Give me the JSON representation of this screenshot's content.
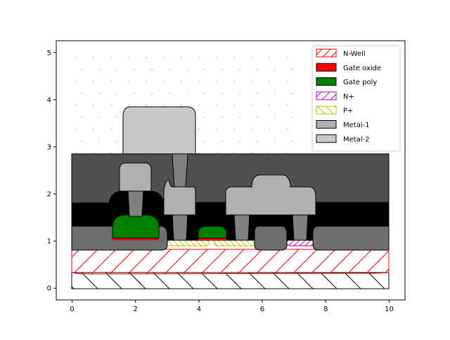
{
  "chart_data": {
    "type": "diagram",
    "xlim": [
      -0.5,
      10.5
    ],
    "ylim": [
      -0.25,
      5.25
    ],
    "x_ticks": [
      0,
      2,
      4,
      6,
      8,
      10
    ],
    "y_ticks": [
      0,
      1,
      2,
      3,
      4,
      5
    ],
    "x_tick_labels": [
      "0",
      "2",
      "4",
      "6",
      "8",
      "10"
    ],
    "y_tick_labels": [
      "0",
      "1",
      "2",
      "3",
      "4",
      "5"
    ],
    "legend_position": "top-right",
    "legend": [
      {
        "label": "N-Well",
        "face": "#ffffff",
        "edge": "#ff0000",
        "hatch": "/"
      },
      {
        "label": "Gate oxide",
        "face": "#ff0000",
        "edge": "#000000",
        "hatch": ""
      },
      {
        "label": "Gate poly",
        "face": "#008000",
        "edge": "#000000",
        "hatch": ""
      },
      {
        "label": "N+",
        "face": "#ffffff",
        "edge": "#bf00bf",
        "hatch": "/"
      },
      {
        "label": "P+",
        "face": "#ffffff",
        "edge": "#bfbf00",
        "hatch": "\\"
      },
      {
        "label": "Metal-1",
        "face": "#b0b0b0",
        "edge": "#000000",
        "hatch": ""
      },
      {
        "label": "Metal-2",
        "face": "#c8c8c8",
        "edge": "#000000",
        "hatch": ""
      }
    ],
    "layers": {
      "substrate": {
        "x": [
          0,
          10
        ],
        "y": [
          0,
          0.33
        ]
      },
      "n_well": {
        "x": [
          0,
          10
        ],
        "y": [
          0.3,
          0.85
        ]
      },
      "upper_dielectric": {
        "x": [
          0,
          10
        ],
        "y": [
          1.8,
          2.85
        ]
      },
      "lower_dielectric_band": {
        "x": [
          0,
          10
        ],
        "y": [
          1.3,
          1.8
        ]
      },
      "field_oxide_left": {
        "x": [
          0,
          3
        ],
        "y": [
          0.8,
          1.3
        ]
      },
      "field_oxide_mid": {
        "x": [
          5.8,
          6.8
        ],
        "y": [
          0.8,
          1.3
        ]
      },
      "field_oxide_right": {
        "x": [
          7.6,
          10
        ],
        "y": [
          0.8,
          1.3
        ]
      },
      "gate_poly": [
        {
          "x": [
            1.3,
            2.8
          ],
          "y": [
            1.0,
            1.3
          ]
        },
        {
          "x": [
            3.9,
            4.9
          ],
          "y": [
            1.0,
            1.25
          ]
        }
      ],
      "p_plus": [
        {
          "x": [
            3.0,
            4.3
          ],
          "y": [
            0.9,
            1.0
          ]
        },
        {
          "x": [
            4.5,
            5.8
          ],
          "y": [
            0.9,
            1.0
          ]
        }
      ],
      "n_plus": [
        {
          "x": [
            6.8,
            7.7
          ],
          "y": [
            0.9,
            1.0
          ]
        }
      ],
      "metal_1": [
        {
          "x": [
            1.7,
            2.5
          ],
          "y": [
            2.0,
            2.65
          ]
        },
        {
          "x": [
            2.9,
            3.9
          ],
          "y": [
            1.55,
            2.15
          ]
        },
        {
          "x": [
            4.9,
            7.6
          ],
          "y": [
            1.55,
            2.15
          ]
        },
        {
          "x": [
            5.7,
            6.9
          ],
          "y": [
            2.15,
            2.45
          ]
        }
      ],
      "metal_2": {
        "x": [
          1.6,
          3.9
        ],
        "y": [
          2.85,
          3.85
        ]
      }
    }
  }
}
